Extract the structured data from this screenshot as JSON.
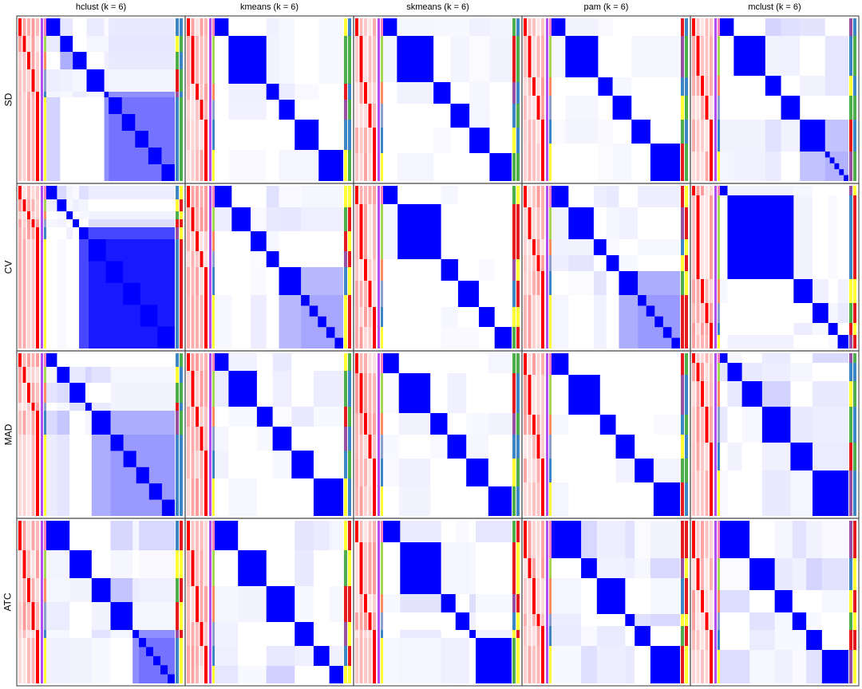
{
  "chart_data": {
    "type": "heatmap",
    "title": "",
    "column_titles": [
      "hclust (k = 6)",
      "kmeans (k = 6)",
      "skmeans (k = 6)",
      "pam (k = 6)",
      "mclust (k = 6)"
    ],
    "row_labels": [
      "SD",
      "CV",
      "MAD",
      "ATC"
    ],
    "value_range": [
      0,
      1
    ],
    "colors": {
      "high": "#0000FF",
      "low": "#FFFFFF",
      "membership": "#FF0000",
      "border": "#555555"
    },
    "class_colors": [
      "#3C86C6",
      "#FFFF33",
      "#4DAF4A",
      "#E41A1C",
      "#984EA3",
      "#FF7F00",
      "#F781BF",
      "#A6D854",
      "#FC8D62",
      "#8DA0CB"
    ],
    "panels": [
      [
        {
          "blocks": [
            22,
            20,
            22,
            28,
            7,
            105
          ],
          "off_diagonal": 0.35,
          "diffuse_last": 0.55
        },
        {
          "blocks": [
            22,
            60,
            20,
            25,
            38,
            39
          ],
          "off_diagonal": 0.12,
          "diffuse_last": 0
        },
        {
          "blocks": [
            22,
            58,
            27,
            30,
            32,
            35
          ],
          "off_diagonal": 0.08,
          "diffuse_last": 0
        },
        {
          "blocks": [
            22,
            52,
            23,
            30,
            30,
            47
          ],
          "off_diagonal": 0.06,
          "diffuse_last": 0
        },
        {
          "blocks": [
            22,
            50,
            25,
            30,
            40,
            37
          ],
          "off_diagonal": 0.2,
          "diffuse_last": 0.3
        }
      ],
      [
        {
          "blocks": [
            17,
            15,
            10,
            10,
            15,
            137
          ],
          "off_diagonal": 0.2,
          "diffuse_last": 0.9
        },
        {
          "blocks": [
            27,
            30,
            25,
            20,
            35,
            67
          ],
          "off_diagonal": 0.15,
          "diffuse_last": 0.35
        },
        {
          "blocks": [
            23,
            69,
            27,
            33,
            25,
            27
          ],
          "off_diagonal": 0.06,
          "diffuse_last": 0
        },
        {
          "blocks": [
            27,
            40,
            20,
            20,
            30,
            67
          ],
          "off_diagonal": 0.15,
          "diffuse_last": 0.4
        },
        {
          "blocks": [
            12,
            105,
            30,
            25,
            15,
            17
          ],
          "off_diagonal": 0.1,
          "diffuse_last": 0
        }
      ],
      [
        {
          "blocks": [
            17,
            20,
            25,
            10,
            30,
            102
          ],
          "off_diagonal": 0.25,
          "diffuse_last": 0.4
        },
        {
          "blocks": [
            22,
            45,
            25,
            30,
            35,
            47
          ],
          "off_diagonal": 0.12,
          "diffuse_last": 0
        },
        {
          "blocks": [
            25,
            50,
            27,
            30,
            35,
            37
          ],
          "off_diagonal": 0.08,
          "diffuse_last": 0
        },
        {
          "blocks": [
            27,
            50,
            25,
            30,
            30,
            42
          ],
          "off_diagonal": 0.06,
          "diffuse_last": 0
        },
        {
          "blocks": [
            12,
            23,
            32,
            45,
            35,
            57
          ],
          "off_diagonal": 0.25,
          "diffuse_last": 0
        }
      ],
      [
        {
          "blocks": [
            37,
            35,
            30,
            35,
            10,
            57
          ],
          "off_diagonal": 0.25,
          "diffuse_last": 0.55
        },
        {
          "blocks": [
            37,
            45,
            45,
            30,
            25,
            22
          ],
          "off_diagonal": 0.2,
          "diffuse_last": 0
        },
        {
          "blocks": [
            27,
            65,
            23,
            22,
            10,
            57
          ],
          "off_diagonal": 0.15,
          "diffuse_last": 0
        },
        {
          "blocks": [
            47,
            25,
            45,
            15,
            25,
            47
          ],
          "off_diagonal": 0.2,
          "diffuse_last": 0
        },
        {
          "blocks": [
            47,
            40,
            28,
            22,
            25,
            42
          ],
          "off_diagonal": 0.2,
          "diffuse_last": 0
        }
      ]
    ]
  }
}
